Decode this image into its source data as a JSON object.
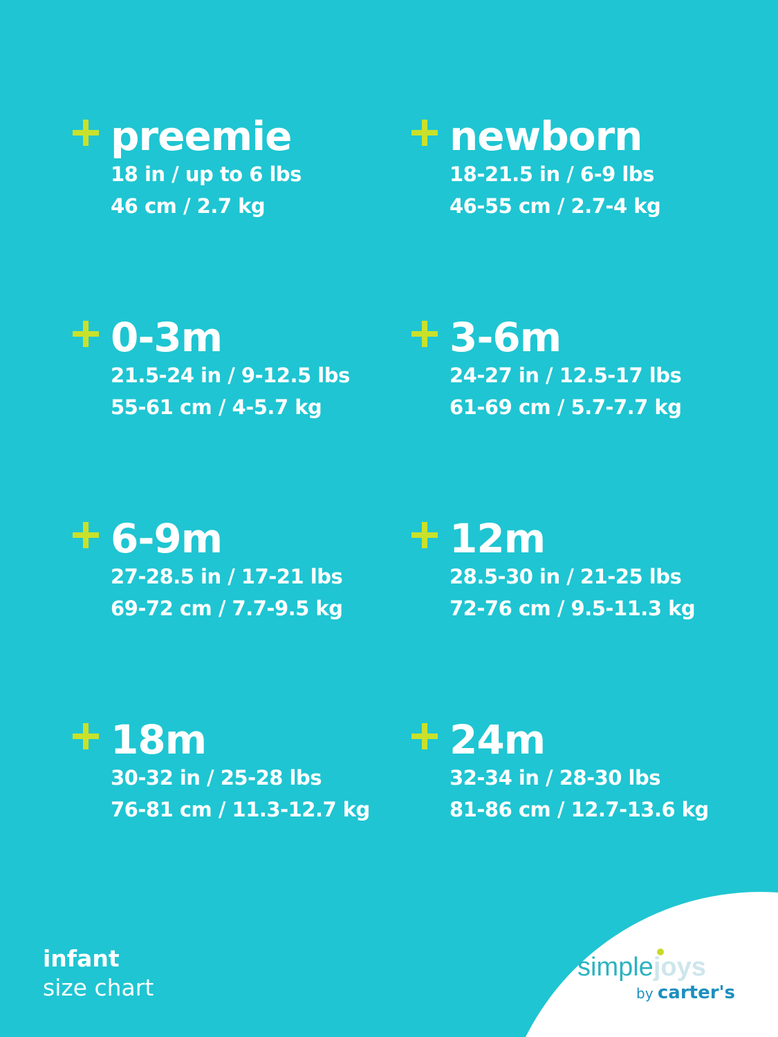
{
  "sizes": [
    {
      "name": "preemie",
      "imperial": "18 in / up to 6 lbs",
      "metric": "46 cm / 2.7 kg"
    },
    {
      "name": "newborn",
      "imperial": "18-21.5 in / 6-9 lbs",
      "metric": "46-55 cm / 2.7-4 kg"
    },
    {
      "name": "0-3m",
      "imperial": "21.5-24 in / 9-12.5 lbs",
      "metric": "55-61 cm / 4-5.7 kg"
    },
    {
      "name": "3-6m",
      "imperial": "24-27 in / 12.5-17 lbs",
      "metric": "61-69 cm / 5.7-7.7 kg"
    },
    {
      "name": "6-9m",
      "imperial": "27-28.5 in / 17-21 lbs",
      "metric": "69-72 cm / 7.7-9.5 kg"
    },
    {
      "name": "12m",
      "imperial": "28.5-30 in / 21-25 lbs",
      "metric": "72-76 cm / 9.5-11.3 kg"
    },
    {
      "name": "18m",
      "imperial": "30-32 in / 25-28 lbs",
      "metric": "76-81 cm / 11.3-12.7 kg"
    },
    {
      "name": "24m",
      "imperial": "32-34 in / 28-30 lbs",
      "metric": "81-86 cm / 12.7-13.6 kg"
    }
  ],
  "footer": {
    "line1": "infant",
    "line2": "size chart"
  },
  "logo": {
    "simple": "simple",
    "joys": "joys",
    "by": "by",
    "brand": "carter's"
  },
  "colors": {
    "background": "#1fc5d2",
    "accent": "#c9e12b"
  }
}
